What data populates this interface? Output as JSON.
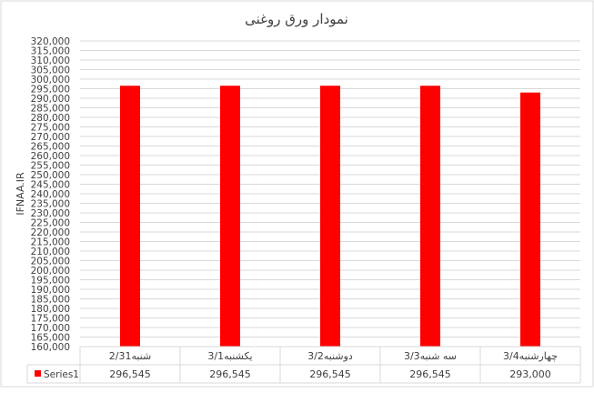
{
  "chart_data": {
    "type": "bar",
    "title": "نمودار ورق روغنی",
    "ylabel": "IFNAA.IR",
    "xlabel": "",
    "categories": [
      "شنبه2/31",
      "یکشنبه3/1",
      "دوشنبه3/2",
      "سه شنبه3/3",
      "چهارشنبه3/4"
    ],
    "series": [
      {
        "name": "Series1",
        "values": [
          296545,
          296545,
          296545,
          296545,
          293000
        ],
        "color": "#FF0000"
      }
    ],
    "ylim": [
      160000,
      320000
    ],
    "ytick_step": 5000,
    "grid": true,
    "data_table": true,
    "legend": "data-table-left"
  }
}
